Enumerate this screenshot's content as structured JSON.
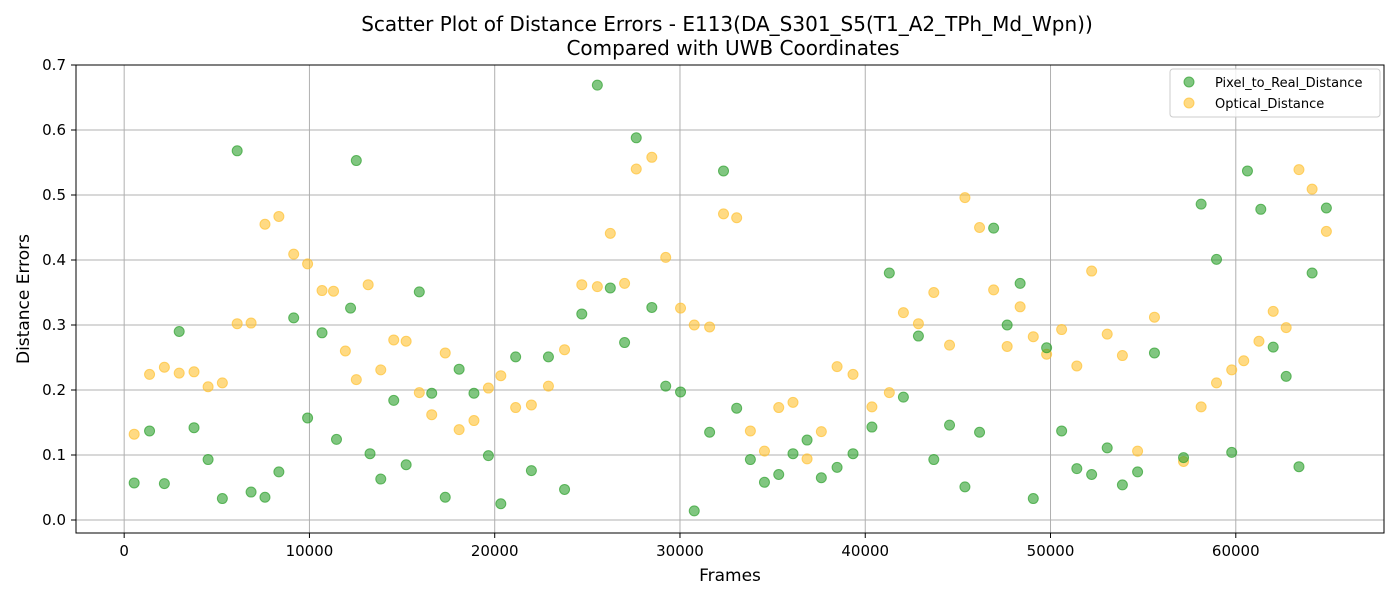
{
  "chart_data": {
    "type": "scatter",
    "title": [
      "Scatter Plot of Distance Errors - E113(DA_S301_S5(T1_A2_TPh_Md_Wpn))",
      "Compared with UWB Coordinates"
    ],
    "xlabel": "Frames",
    "ylabel": "Distance Errors",
    "xlim": [
      -2600,
      68000
    ],
    "ylim": [
      -0.02,
      0.7
    ],
    "xticks": [
      0,
      10000,
      20000,
      30000,
      40000,
      50000,
      60000
    ],
    "xtick_labels": [
      "0",
      "10000",
      "20000",
      "30000",
      "40000",
      "50000",
      "60000"
    ],
    "yticks": [
      0.0,
      0.1,
      0.2,
      0.3,
      0.4,
      0.5,
      0.6,
      0.7
    ],
    "ytick_labels": [
      "0.0",
      "0.1",
      "0.2",
      "0.3",
      "0.4",
      "0.5",
      "0.6",
      "0.7"
    ],
    "grid": true,
    "legend_position": "top-right",
    "series": [
      {
        "name": "Pixel_to_Real_Distance",
        "color": "#2ca02c",
        "points": [
          [
            540,
            0.057
          ],
          [
            1370,
            0.137
          ],
          [
            2170,
            0.056
          ],
          [
            2970,
            0.29
          ],
          [
            3770,
            0.142
          ],
          [
            4530,
            0.093
          ],
          [
            5300,
            0.033
          ],
          [
            6100,
            0.568
          ],
          [
            6850,
            0.043
          ],
          [
            7600,
            0.035
          ],
          [
            8350,
            0.074
          ],
          [
            9150,
            0.311
          ],
          [
            9900,
            0.157
          ],
          [
            10680,
            0.288
          ],
          [
            11460,
            0.124
          ],
          [
            12220,
            0.326
          ],
          [
            12530,
            0.553
          ],
          [
            13270,
            0.102
          ],
          [
            13850,
            0.063
          ],
          [
            14550,
            0.184
          ],
          [
            15220,
            0.085
          ],
          [
            15930,
            0.351
          ],
          [
            16600,
            0.195
          ],
          [
            17330,
            0.035
          ],
          [
            18080,
            0.232
          ],
          [
            18880,
            0.195
          ],
          [
            19660,
            0.099
          ],
          [
            20330,
            0.025
          ],
          [
            21130,
            0.251
          ],
          [
            21980,
            0.076
          ],
          [
            22900,
            0.251
          ],
          [
            23770,
            0.047
          ],
          [
            24700,
            0.317
          ],
          [
            25540,
            0.669
          ],
          [
            26240,
            0.357
          ],
          [
            27010,
            0.273
          ],
          [
            27640,
            0.588
          ],
          [
            28480,
            0.327
          ],
          [
            29230,
            0.206
          ],
          [
            30030,
            0.197
          ],
          [
            30770,
            0.014
          ],
          [
            31600,
            0.135
          ],
          [
            32350,
            0.537
          ],
          [
            33060,
            0.172
          ],
          [
            33800,
            0.093
          ],
          [
            34560,
            0.058
          ],
          [
            35330,
            0.07
          ],
          [
            36100,
            0.102
          ],
          [
            36860,
            0.123
          ],
          [
            37630,
            0.065
          ],
          [
            38480,
            0.081
          ],
          [
            39340,
            0.102
          ],
          [
            40360,
            0.143
          ],
          [
            41300,
            0.38
          ],
          [
            42060,
            0.189
          ],
          [
            42870,
            0.283
          ],
          [
            43700,
            0.093
          ],
          [
            44550,
            0.146
          ],
          [
            45380,
            0.051
          ],
          [
            46170,
            0.135
          ],
          [
            46930,
            0.449
          ],
          [
            47660,
            0.3
          ],
          [
            48360,
            0.364
          ],
          [
            49070,
            0.033
          ],
          [
            49790,
            0.265
          ],
          [
            50600,
            0.137
          ],
          [
            51420,
            0.079
          ],
          [
            52220,
            0.07
          ],
          [
            53060,
            0.111
          ],
          [
            53880,
            0.054
          ],
          [
            54700,
            0.074
          ],
          [
            55610,
            0.257
          ],
          [
            57180,
            0.096
          ],
          [
            58130,
            0.486
          ],
          [
            58960,
            0.401
          ],
          [
            59780,
            0.104
          ],
          [
            60630,
            0.537
          ],
          [
            61350,
            0.478
          ],
          [
            62020,
            0.266
          ],
          [
            62720,
            0.221
          ],
          [
            63410,
            0.082
          ],
          [
            64120,
            0.38
          ],
          [
            64890,
            0.48
          ]
        ]
      },
      {
        "name": "Optical_Distance",
        "color": "#ffc130",
        "points": [
          [
            540,
            0.132
          ],
          [
            1370,
            0.224
          ],
          [
            2170,
            0.235
          ],
          [
            2970,
            0.226
          ],
          [
            3770,
            0.228
          ],
          [
            4530,
            0.205
          ],
          [
            5300,
            0.211
          ],
          [
            6100,
            0.302
          ],
          [
            6850,
            0.303
          ],
          [
            7600,
            0.455
          ],
          [
            8350,
            0.467
          ],
          [
            9150,
            0.409
          ],
          [
            9900,
            0.394
          ],
          [
            10680,
            0.353
          ],
          [
            11300,
            0.352
          ],
          [
            11940,
            0.26
          ],
          [
            12530,
            0.216
          ],
          [
            13170,
            0.362
          ],
          [
            13850,
            0.231
          ],
          [
            14550,
            0.277
          ],
          [
            15220,
            0.275
          ],
          [
            15930,
            0.196
          ],
          [
            16600,
            0.162
          ],
          [
            17330,
            0.257
          ],
          [
            18080,
            0.139
          ],
          [
            18880,
            0.153
          ],
          [
            19660,
            0.203
          ],
          [
            20330,
            0.222
          ],
          [
            21130,
            0.173
          ],
          [
            21980,
            0.177
          ],
          [
            22900,
            0.206
          ],
          [
            23770,
            0.262
          ],
          [
            24700,
            0.362
          ],
          [
            25540,
            0.359
          ],
          [
            26240,
            0.441
          ],
          [
            27010,
            0.364
          ],
          [
            27640,
            0.54
          ],
          [
            28480,
            0.558
          ],
          [
            29230,
            0.404
          ],
          [
            30030,
            0.326
          ],
          [
            30770,
            0.3
          ],
          [
            31600,
            0.297
          ],
          [
            32350,
            0.471
          ],
          [
            33060,
            0.465
          ],
          [
            33800,
            0.137
          ],
          [
            34560,
            0.106
          ],
          [
            35330,
            0.173
          ],
          [
            36100,
            0.181
          ],
          [
            36860,
            0.094
          ],
          [
            37630,
            0.136
          ],
          [
            38480,
            0.236
          ],
          [
            39340,
            0.224
          ],
          [
            40360,
            0.174
          ],
          [
            41300,
            0.196
          ],
          [
            42060,
            0.319
          ],
          [
            42870,
            0.302
          ],
          [
            43700,
            0.35
          ],
          [
            44550,
            0.269
          ],
          [
            45380,
            0.496
          ],
          [
            46170,
            0.45
          ],
          [
            46930,
            0.354
          ],
          [
            47660,
            0.267
          ],
          [
            48360,
            0.328
          ],
          [
            49070,
            0.282
          ],
          [
            49790,
            0.255
          ],
          [
            50600,
            0.293
          ],
          [
            51420,
            0.237
          ],
          [
            52220,
            0.383
          ],
          [
            53060,
            0.286
          ],
          [
            53880,
            0.253
          ],
          [
            54700,
            0.106
          ],
          [
            55610,
            0.312
          ],
          [
            57180,
            0.09
          ],
          [
            58130,
            0.174
          ],
          [
            58960,
            0.211
          ],
          [
            59780,
            0.231
          ],
          [
            60430,
            0.245
          ],
          [
            61250,
            0.275
          ],
          [
            62020,
            0.321
          ],
          [
            62720,
            0.296
          ],
          [
            63410,
            0.539
          ],
          [
            64120,
            0.509
          ],
          [
            64890,
            0.444
          ]
        ]
      }
    ]
  }
}
